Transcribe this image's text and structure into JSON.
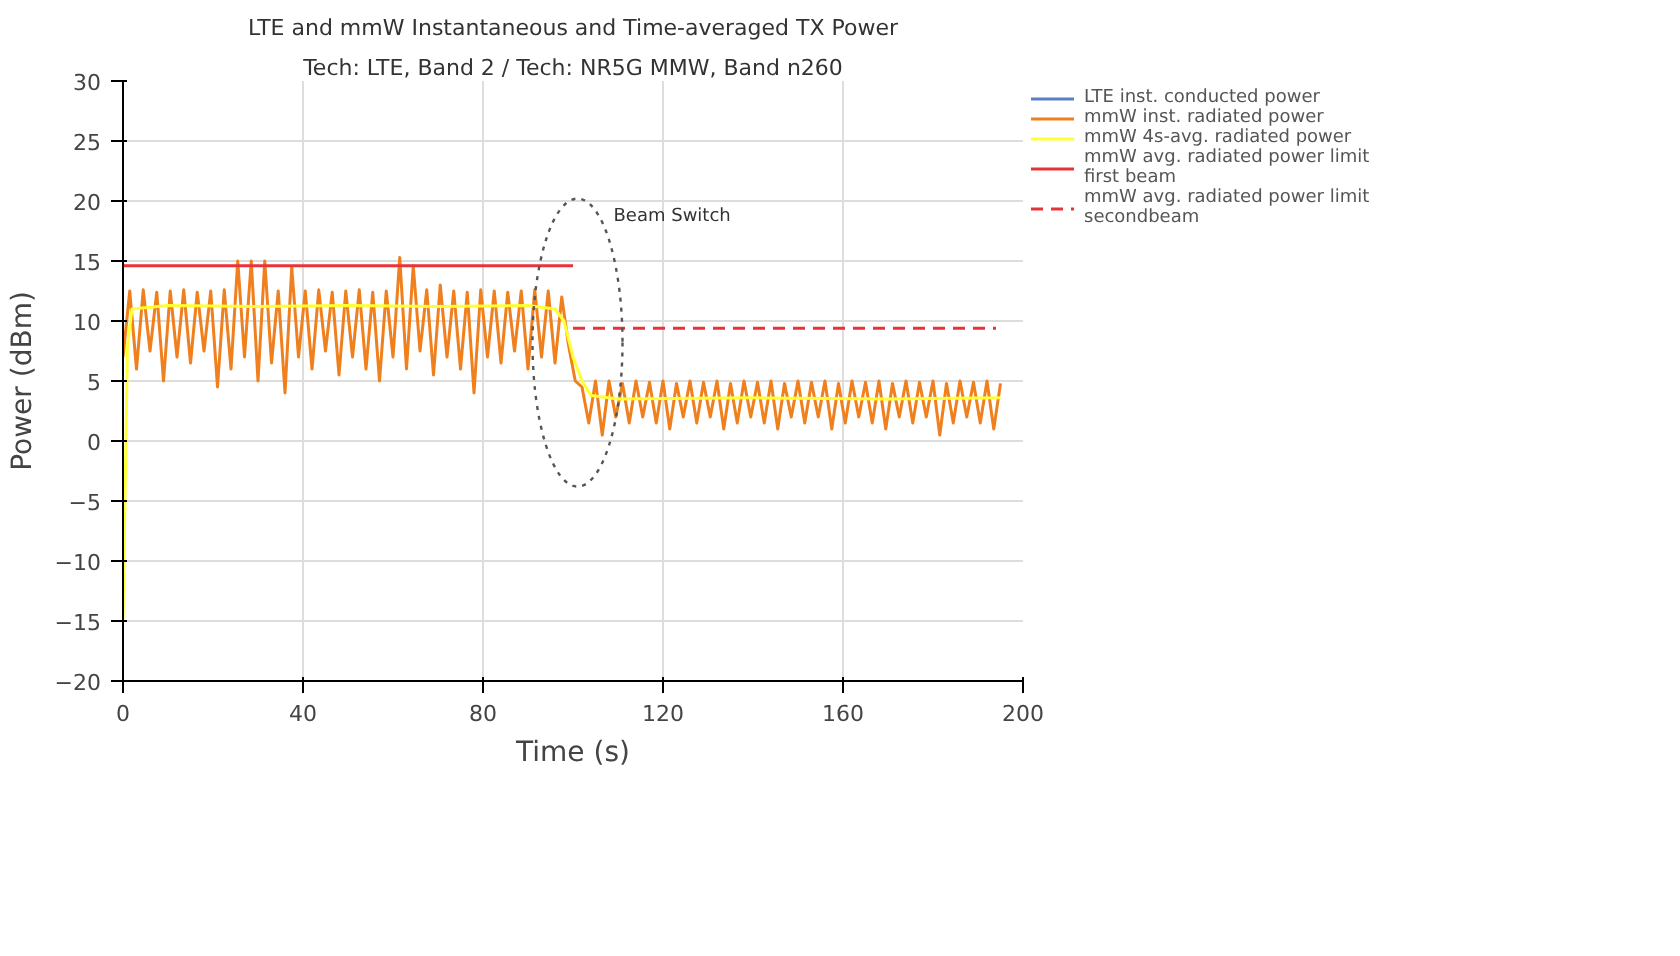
{
  "chart_data": {
    "type": "line",
    "title": "LTE and mmW Instantaneous and Time-averaged TX Power",
    "subtitle": "Tech: LTE, Band 2 / Tech: NR5G MMW, Band n260",
    "xlabel": "Time (s)",
    "ylabel": "Power (dBm)",
    "xlim": [
      0,
      200
    ],
    "ylim": [
      -20,
      30
    ],
    "xticks": [
      0,
      40,
      80,
      120,
      160,
      200
    ],
    "yticks": [
      -20,
      -15,
      -10,
      -5,
      0,
      5,
      10,
      15,
      20,
      25,
      30
    ],
    "grid": true,
    "legend": "top right",
    "marker": "none",
    "annotations": [
      "Beam Switch"
    ],
    "series": [
      {
        "name": "LTE inst. conducted power",
        "color": "#5b7fc7"
      },
      {
        "name": "mmW inst. radiated power",
        "color": "#f07f1e",
        "x": [
          0,
          1.5,
          3,
          4.5,
          6,
          7.5,
          9,
          10.5,
          12,
          13.5,
          15,
          16.5,
          18,
          19.5,
          21,
          22.5,
          24,
          25.5,
          27,
          28.5,
          30,
          31.5,
          33,
          34.5,
          36,
          37.5,
          39,
          40.5,
          42,
          43.5,
          45,
          46.5,
          48,
          49.5,
          51,
          52.5,
          54,
          55.5,
          57,
          58.5,
          60,
          61.5,
          63,
          64.5,
          66,
          67.5,
          69,
          70.5,
          72,
          73.5,
          75,
          76.5,
          78,
          79.5,
          81,
          82.5,
          84,
          85.5,
          87,
          88.5,
          90,
          91.5,
          93,
          94.5,
          96,
          97.5,
          99,
          100.5,
          102,
          103.5,
          105,
          106.5,
          108,
          109.5,
          111,
          112.5,
          114,
          115.5,
          117,
          118.5,
          120,
          121.5,
          123,
          124.5,
          126,
          127.5,
          129,
          130.5,
          132,
          133.5,
          135,
          136.5,
          138,
          139.5,
          141,
          142.5,
          144,
          145.5,
          147,
          148.5,
          150,
          151.5,
          153,
          154.5,
          156,
          157.5,
          159,
          160.5,
          162,
          163.5,
          165,
          166.5,
          168,
          169.5,
          171,
          172.5,
          174,
          175.5,
          177,
          178.5,
          180,
          181.5,
          183,
          184.5,
          186,
          187.5,
          189,
          190.5,
          192,
          193.5,
          195
        ],
        "values": [
          7,
          12.5,
          6,
          12.6,
          7.5,
          12.4,
          5,
          12.5,
          7,
          12.6,
          6.5,
          12.4,
          7.5,
          12.5,
          4.5,
          12.6,
          6,
          15,
          7,
          15,
          5,
          15,
          6.5,
          12.5,
          4,
          14.5,
          7,
          12.5,
          6,
          12.6,
          7.5,
          12.4,
          5.5,
          12.5,
          7,
          12.6,
          6,
          12.4,
          5,
          12.5,
          7,
          15.3,
          6,
          14.6,
          7.5,
          12.6,
          5.5,
          13,
          7,
          12.5,
          6,
          12.4,
          4,
          12.6,
          7,
          12.5,
          6.5,
          12.4,
          7.5,
          12.5,
          6,
          12.6,
          7,
          12.5,
          6.5,
          12,
          8,
          5,
          4.5,
          1.5,
          5,
          0.5,
          5,
          2,
          4.8,
          1.5,
          5,
          2,
          4.9,
          1.5,
          5,
          1,
          4.8,
          2,
          5,
          1.5,
          4.9,
          2,
          5,
          1,
          4.8,
          1.5,
          5,
          2,
          4.9,
          1.5,
          5,
          1,
          4.8,
          2,
          5,
          1.5,
          4.9,
          2,
          5,
          1,
          4.8,
          1.5,
          5,
          2,
          4.9,
          1.5,
          5,
          1,
          4.8,
          2,
          5,
          1.5,
          4.9,
          2,
          5,
          0.5,
          4.8,
          1.5,
          5,
          2,
          4.9,
          1.5,
          5,
          1,
          4.8
        ]
      },
      {
        "name": "mmW 4s-avg. radiated power",
        "color": "#ffff33",
        "x": [
          0,
          1,
          2,
          10,
          30,
          50,
          70,
          90,
          96,
          98,
          100,
          102,
          104,
          110,
          140,
          170,
          195
        ],
        "values": [
          -15,
          8,
          11,
          11.3,
          11.2,
          11.3,
          11.2,
          11.3,
          11,
          10,
          7,
          5,
          3.8,
          3.5,
          3.6,
          3.5,
          3.6
        ]
      },
      {
        "name": "mmW avg. radiated power limit first beam",
        "color": "#e8333b",
        "line_style": "solid",
        "x": [
          0,
          100
        ],
        "values": [
          14.6,
          14.6
        ]
      },
      {
        "name": "mmW avg. radiated power limit secondbeam",
        "color": "#e8333b",
        "line_style": "dashed",
        "x": [
          100,
          194
        ],
        "values": [
          9.4,
          9.4
        ]
      }
    ]
  }
}
